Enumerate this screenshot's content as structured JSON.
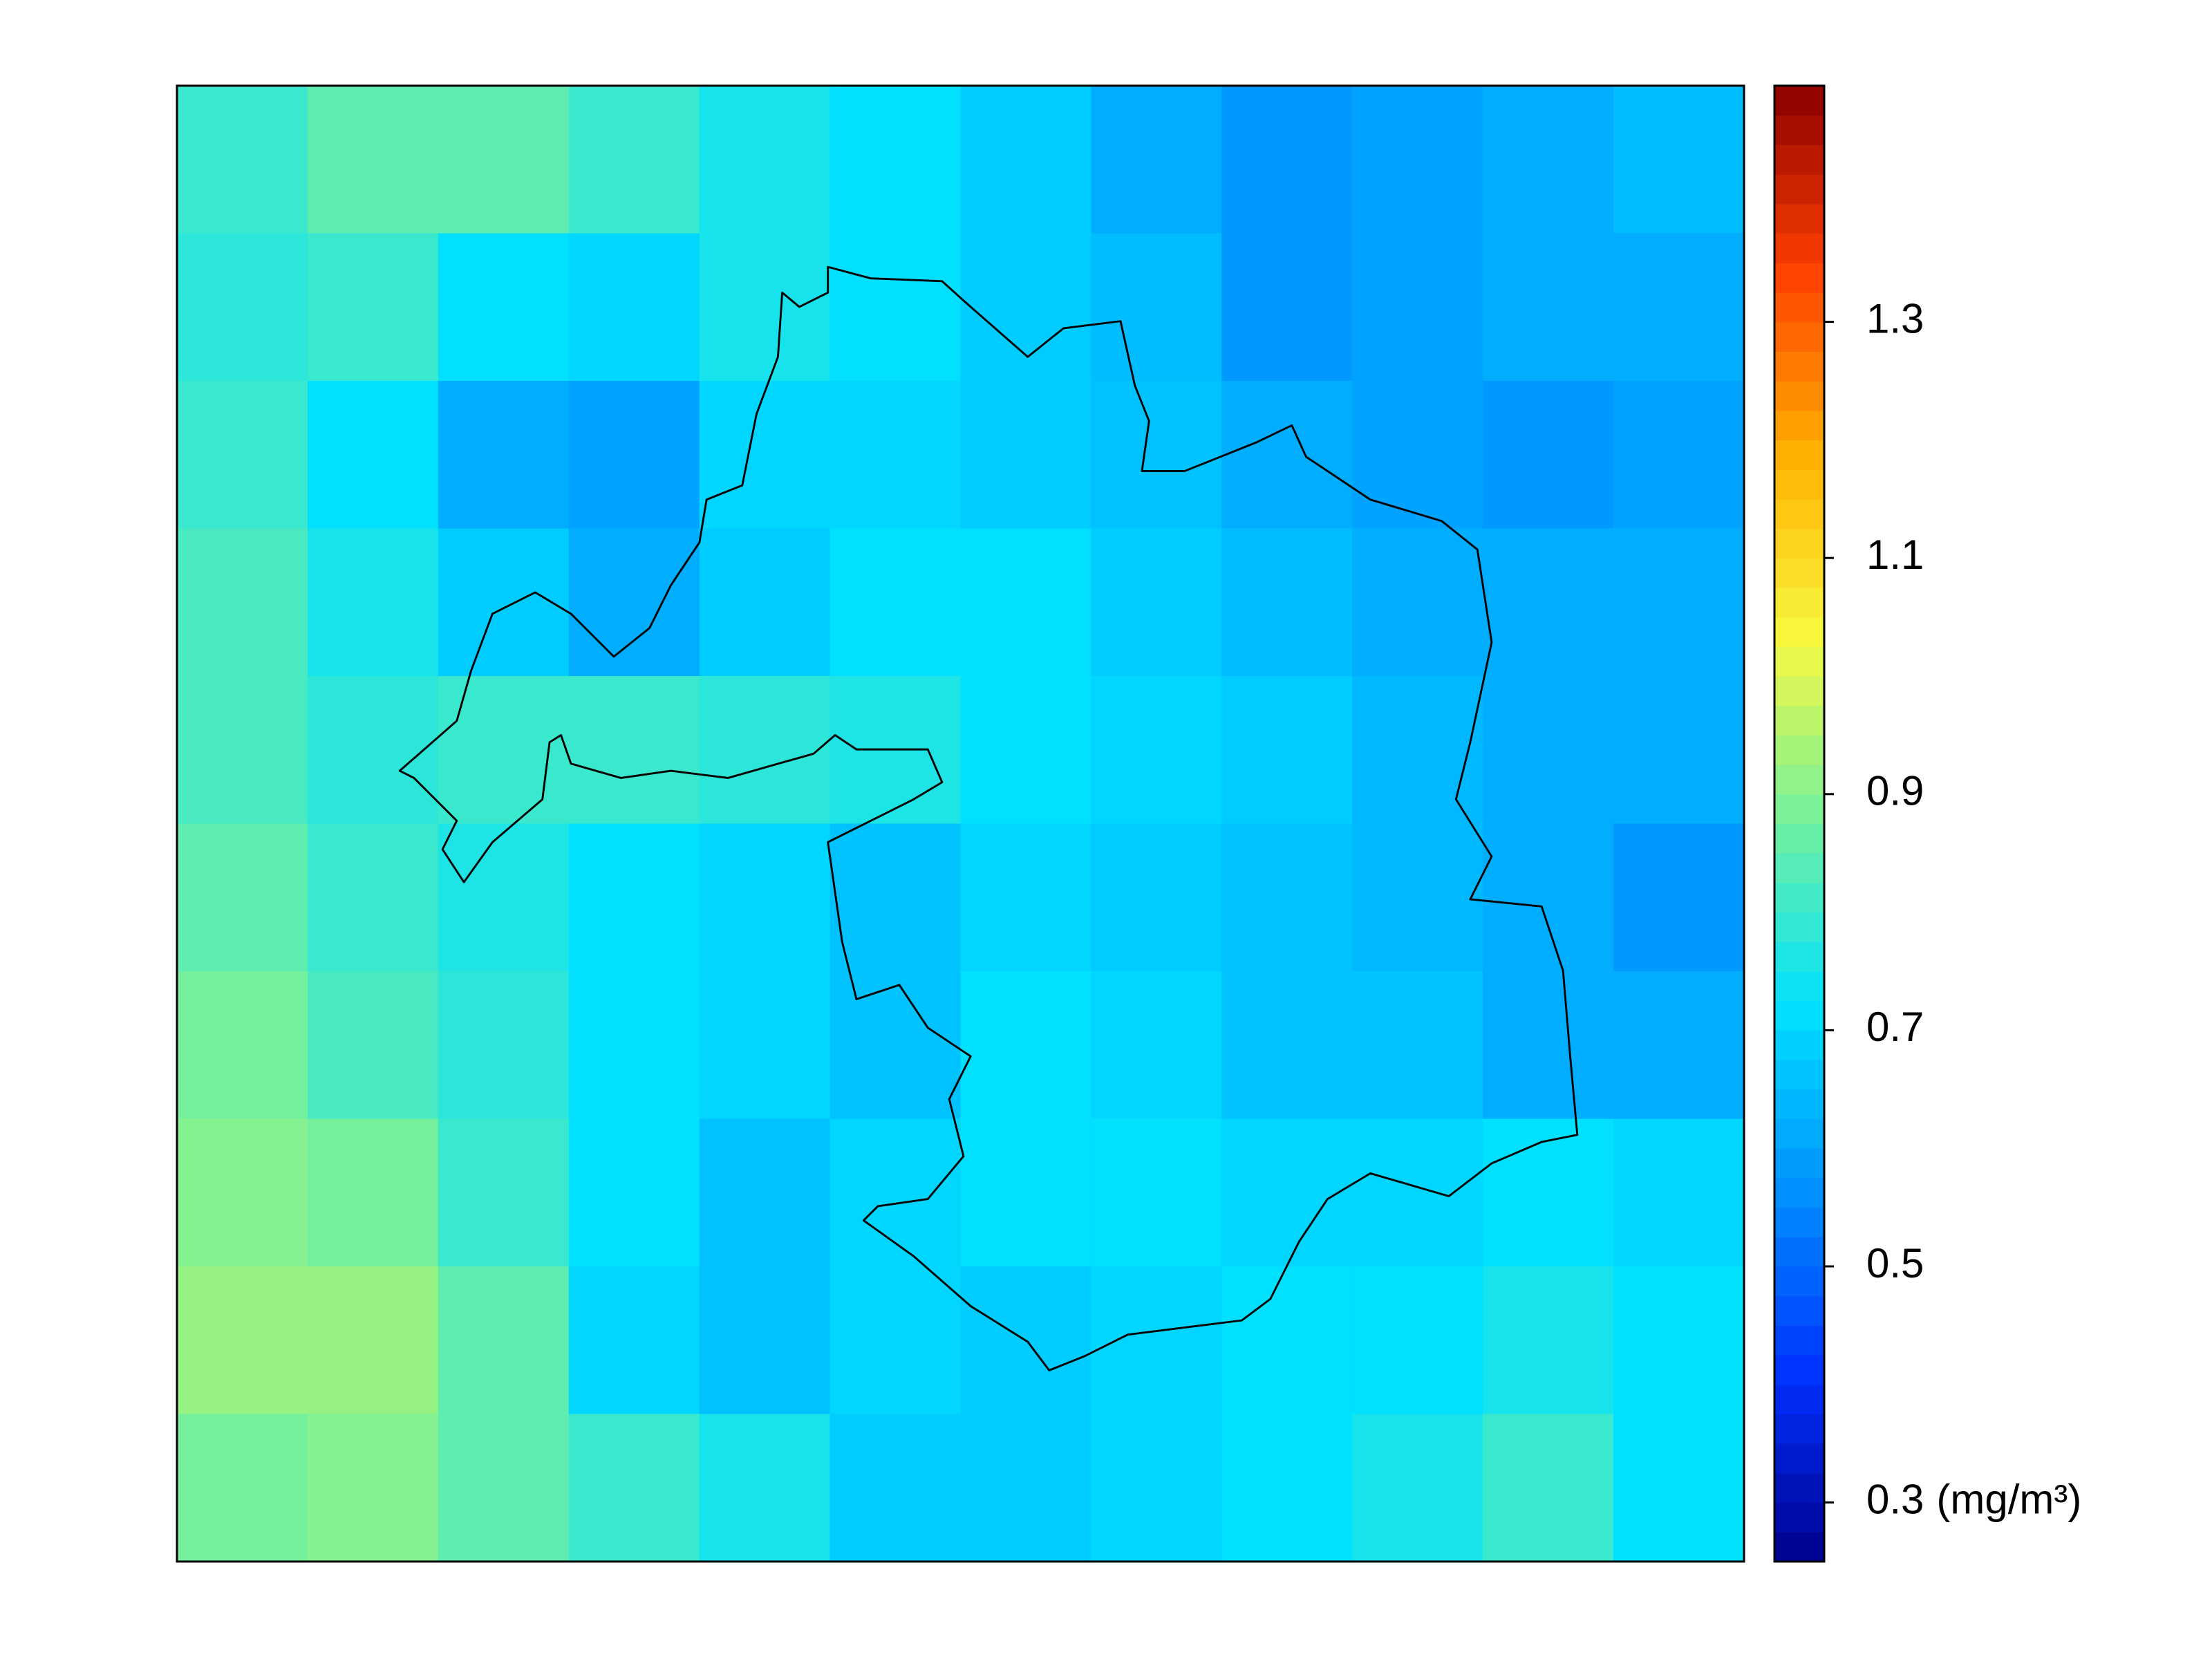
{
  "chart_data": {
    "type": "heatmap",
    "values": [
      [
        0.8,
        0.85,
        0.85,
        0.8,
        0.75,
        0.72,
        0.68,
        0.62,
        0.58,
        0.6,
        0.62,
        0.65
      ],
      [
        0.78,
        0.8,
        0.72,
        0.7,
        0.75,
        0.72,
        0.68,
        0.65,
        0.58,
        0.6,
        0.62,
        0.62
      ],
      [
        0.8,
        0.72,
        0.62,
        0.6,
        0.7,
        0.7,
        0.68,
        0.66,
        0.62,
        0.6,
        0.58,
        0.6
      ],
      [
        0.82,
        0.75,
        0.68,
        0.62,
        0.68,
        0.72,
        0.72,
        0.68,
        0.65,
        0.62,
        0.62,
        0.62
      ],
      [
        0.82,
        0.78,
        0.8,
        0.8,
        0.78,
        0.76,
        0.72,
        0.7,
        0.68,
        0.64,
        0.62,
        0.62
      ],
      [
        0.85,
        0.8,
        0.76,
        0.72,
        0.7,
        0.66,
        0.7,
        0.68,
        0.66,
        0.64,
        0.62,
        0.58
      ],
      [
        0.88,
        0.82,
        0.78,
        0.72,
        0.7,
        0.66,
        0.72,
        0.7,
        0.66,
        0.66,
        0.62,
        0.62
      ],
      [
        0.9,
        0.88,
        0.8,
        0.72,
        0.66,
        0.7,
        0.72,
        0.72,
        0.7,
        0.7,
        0.72,
        0.7
      ],
      [
        0.92,
        0.92,
        0.85,
        0.7,
        0.66,
        0.7,
        0.68,
        0.7,
        0.72,
        0.72,
        0.75,
        0.72
      ],
      [
        0.88,
        0.9,
        0.85,
        0.8,
        0.75,
        0.68,
        0.68,
        0.7,
        0.72,
        0.75,
        0.8,
        0.72
      ]
    ],
    "colormap": [
      "#00008b",
      "#0030ff",
      "#0090ff",
      "#00e0ff",
      "#70f0a0",
      "#f8f840",
      "#ffb000",
      "#ff4000",
      "#8b0000"
    ],
    "colorbar": {
      "lim": [
        0.25,
        1.5
      ],
      "ticks": [
        0.3,
        0.5,
        0.7,
        0.9,
        1.1,
        1.3
      ],
      "unit": "(mg/m³)"
    }
  }
}
